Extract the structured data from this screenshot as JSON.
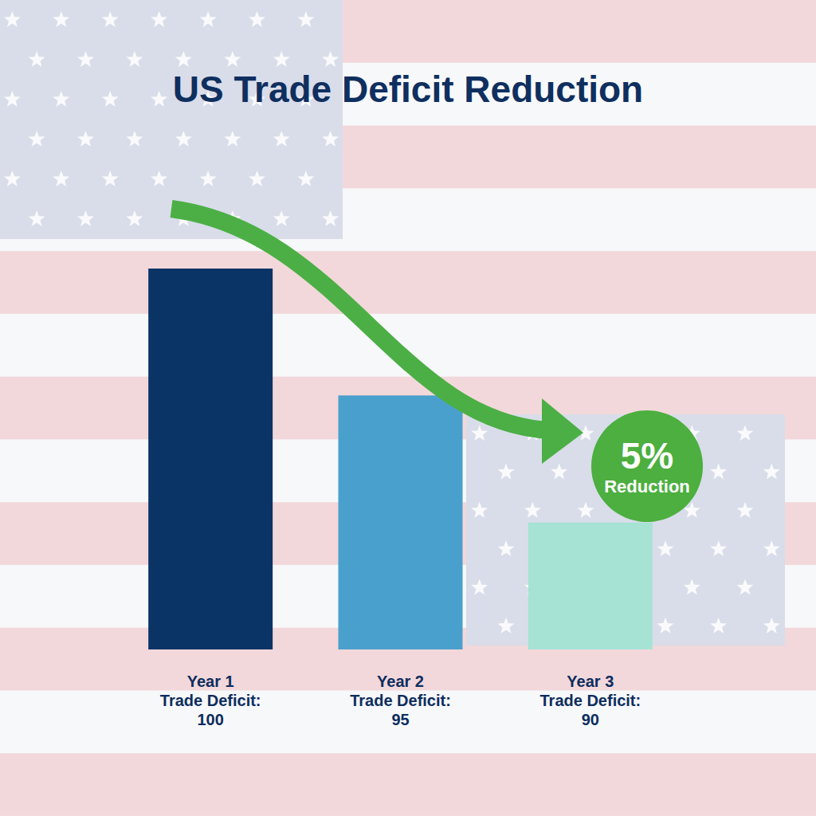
{
  "chart_data": {
    "type": "bar",
    "title": "US Trade Deficit Reduction",
    "categories": [
      "Year 1",
      "Year 2",
      "Year 3"
    ],
    "values": [
      100,
      95,
      90
    ],
    "value_labels": [
      "Trade Deficit:\n100",
      "Trade Deficit:\n95",
      "Trade Deficit:\n90"
    ],
    "colors": [
      "#0b3466",
      "#4aa0cc",
      "#a6e3d5"
    ],
    "ylim": [
      85,
      100
    ],
    "yticks": [
      85,
      90,
      95,
      100
    ],
    "grid": false,
    "tick_labels": "x",
    "data_labels": true,
    "annotation": [
      "5%",
      "Reduction"
    ]
  }
}
